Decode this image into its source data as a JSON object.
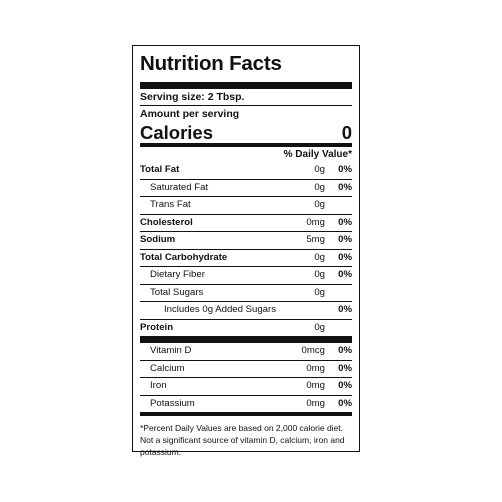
{
  "label": {
    "title": "Nutrition Facts",
    "serving_size": "Serving size: 2 Tbsp.",
    "amount_per_serving": "Amount per serving",
    "calories_label": "Calories",
    "calories_value": "0",
    "daily_value_header": "% Daily Value*",
    "nutrients": [
      {
        "name": "Total Fat",
        "amount": "0g",
        "dv": "0%",
        "bold": true,
        "indent": 0
      },
      {
        "name": "Saturated Fat",
        "amount": "0g",
        "dv": "0%",
        "bold": false,
        "indent": 1
      },
      {
        "name": "Trans Fat",
        "amount": "0g",
        "dv": "",
        "bold": false,
        "indent": 1
      },
      {
        "name": "Cholesterol",
        "amount": "0mg",
        "dv": "0%",
        "bold": true,
        "indent": 0
      },
      {
        "name": "Sodium",
        "amount": "5mg",
        "dv": "0%",
        "bold": true,
        "indent": 0
      },
      {
        "name": "Total Carbohydrate",
        "amount": "0g",
        "dv": "0%",
        "bold": true,
        "indent": 0
      },
      {
        "name": "Dietary Fiber",
        "amount": "0g",
        "dv": "0%",
        "bold": false,
        "indent": 1
      },
      {
        "name": "Total Sugars",
        "amount": "0g",
        "dv": "",
        "bold": false,
        "indent": 1
      },
      {
        "name": "Includes 0g Added Sugars",
        "amount": "",
        "dv": "0%",
        "bold": false,
        "indent": 2
      },
      {
        "name": "Protein",
        "amount": "0g",
        "dv": "",
        "bold": true,
        "indent": 0
      }
    ],
    "vitamins": [
      {
        "name": "Vitamin D",
        "amount": "0mcg",
        "dv": "0%",
        "bold": false,
        "indent": 1
      },
      {
        "name": "Calcium",
        "amount": "0mg",
        "dv": "0%",
        "bold": false,
        "indent": 1
      },
      {
        "name": "Iron",
        "amount": "0mg",
        "dv": "0%",
        "bold": false,
        "indent": 1
      },
      {
        "name": "Potassium",
        "amount": "0mg",
        "dv": "0%",
        "bold": false,
        "indent": 1
      }
    ],
    "footnote": "*Percent Daily Values are based on 2,000 calorie diet. Not a significant source of vitamin D, calcium, iron and potassium."
  }
}
